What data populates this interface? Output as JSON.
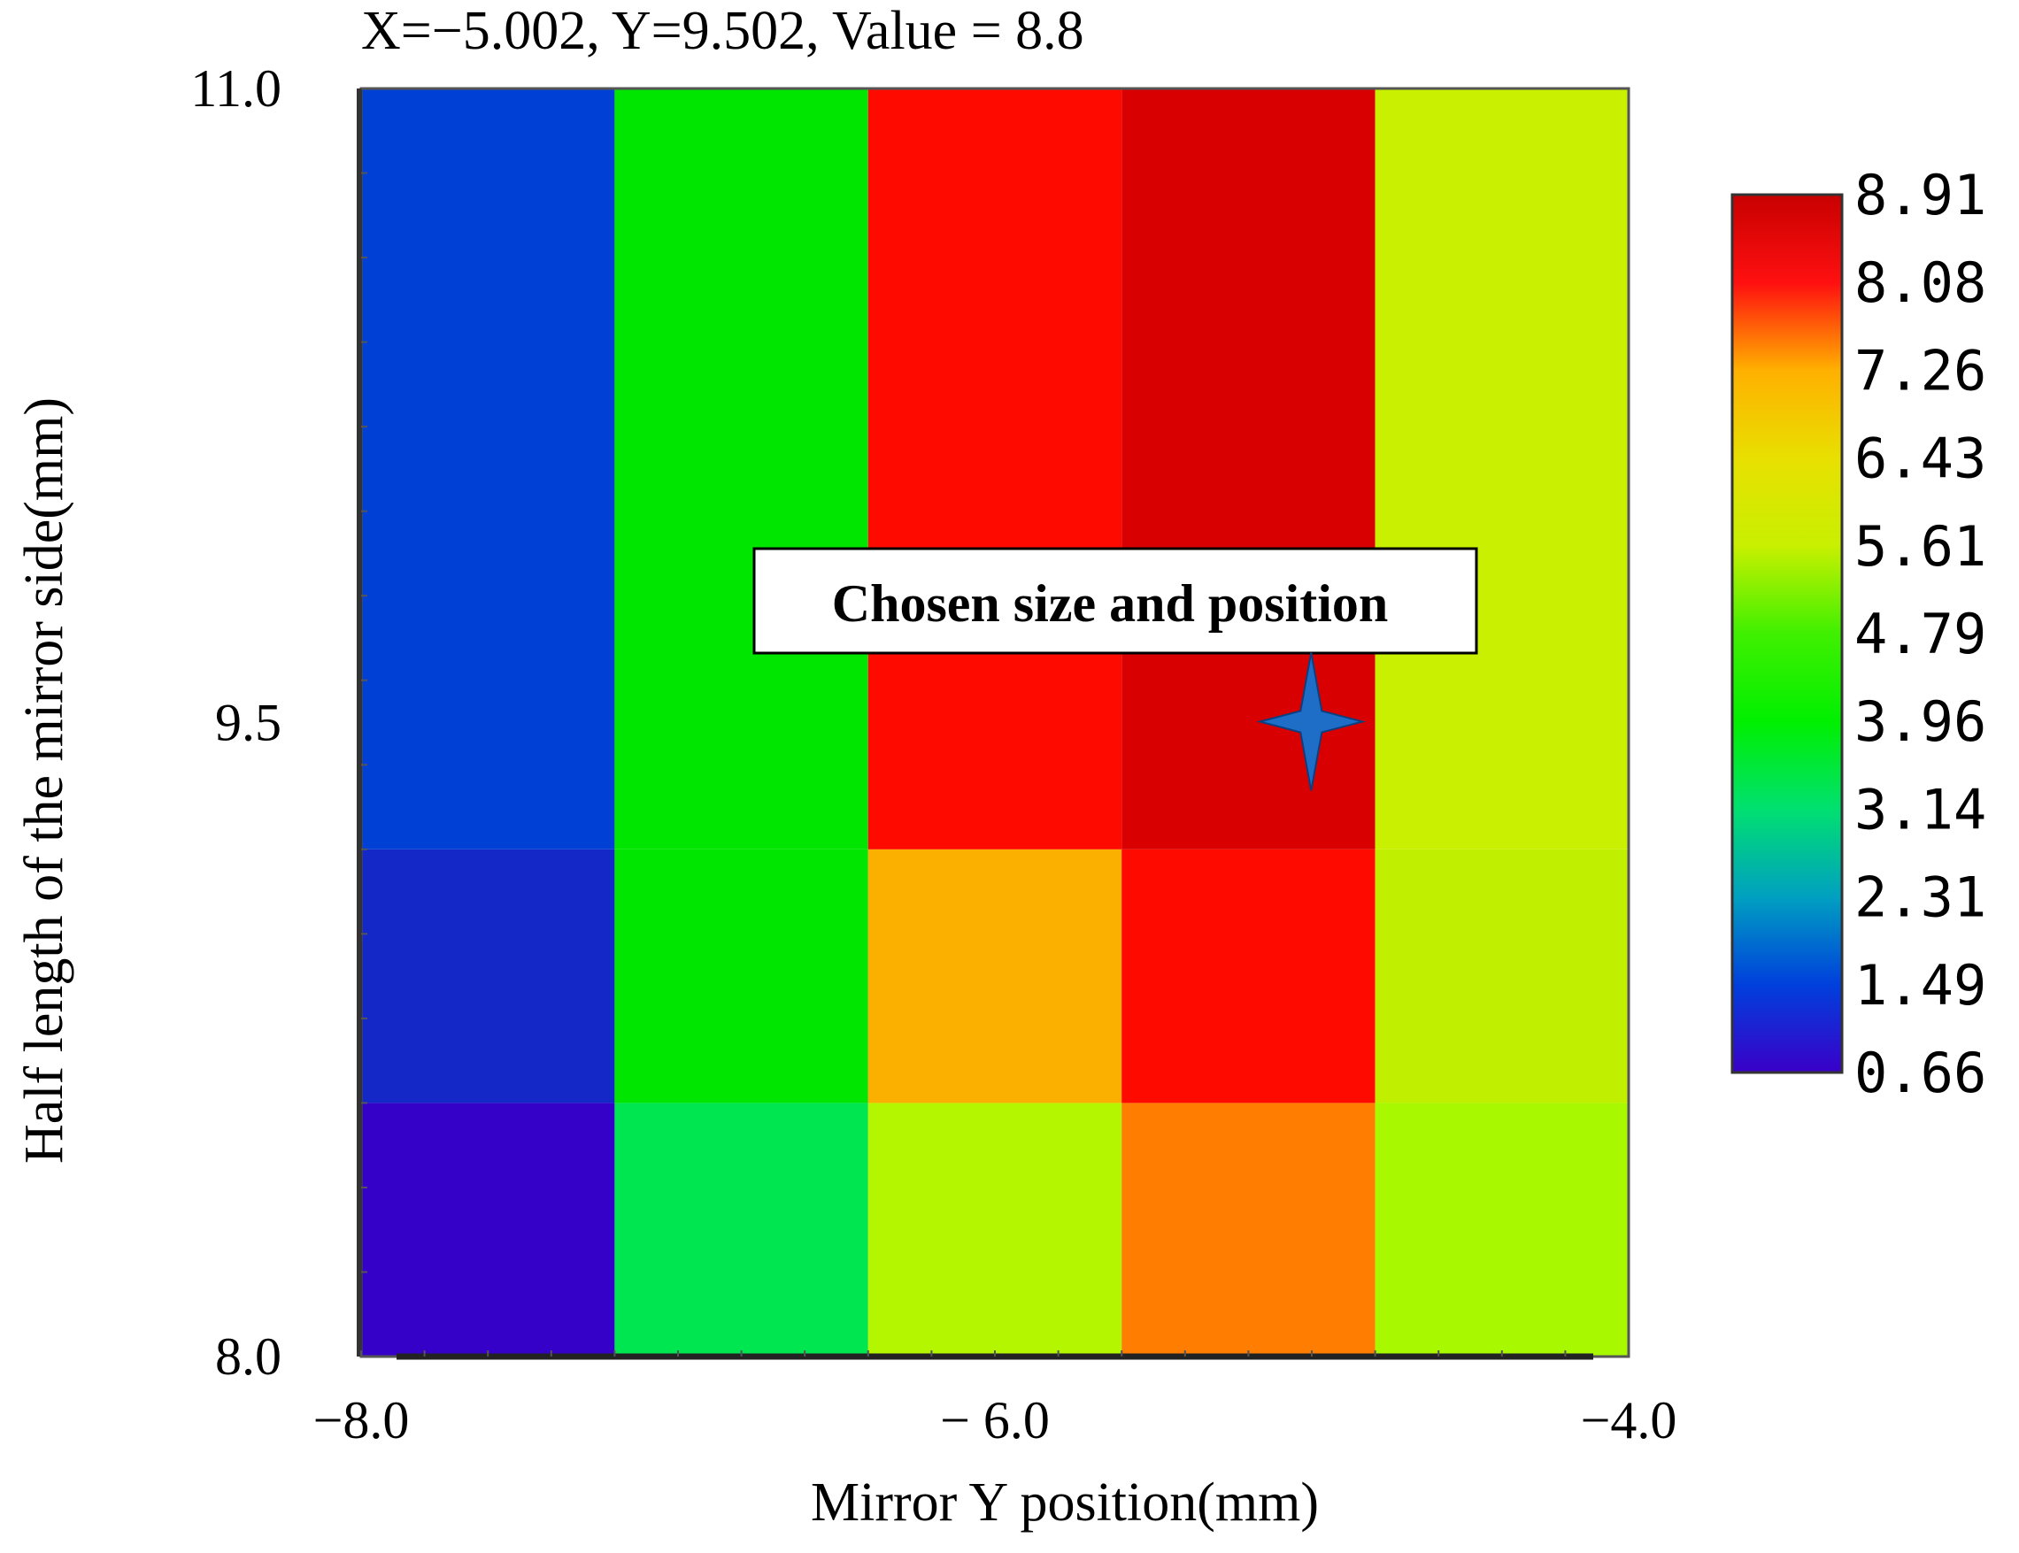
{
  "chart_data": {
    "type": "heatmap",
    "readout": "X=−5.002,  Y=9.502,  Value = 8.8",
    "xlabel": "Mirror Y position(mm)",
    "ylabel": "Half length of the mirror side(mm)",
    "xlim": [
      -8.0,
      -4.0
    ],
    "ylim": [
      8.0,
      11.0
    ],
    "x_ticks": [
      {
        "value": -8.0,
        "label": "−8.0"
      },
      {
        "value": -6.0,
        "label": "− 6.0"
      },
      {
        "value": -4.0,
        "label": "−4.0"
      }
    ],
    "y_ticks": [
      {
        "value": 11.0,
        "label": "11.0"
      },
      {
        "value": 9.5,
        "label": "9.5"
      },
      {
        "value": 8.0,
        "label": "8.0"
      }
    ],
    "x_edges": [
      -8.0,
      -7.2,
      -6.4,
      -5.6,
      -4.8,
      -4.0
    ],
    "y_edges": [
      8.0,
      8.6,
      9.2,
      11.0
    ],
    "cell_values": [
      [
        0.66,
        3.3,
        6.0,
        7.3,
        5.9
      ],
      [
        1.1,
        4.4,
        7.4,
        8.4,
        6.0
      ],
      [
        1.4,
        4.4,
        8.4,
        8.8,
        6.1
      ]
    ],
    "colorbar": {
      "labels": [
        "8.91",
        "8.08",
        "7.26",
        "6.43",
        "5.61",
        "4.79",
        "3.96",
        "3.14",
        "2.31",
        "1.49",
        "0.66"
      ],
      "min": 0.66,
      "max": 8.91,
      "stops": [
        {
          "v": 0.66,
          "color": "#3a00c8"
        },
        {
          "v": 1.49,
          "color": "#0040dc"
        },
        {
          "v": 2.31,
          "color": "#00a0c0"
        },
        {
          "v": 3.14,
          "color": "#00e070"
        },
        {
          "v": 3.96,
          "color": "#00f000"
        },
        {
          "v": 4.79,
          "color": "#40f000"
        },
        {
          "v": 5.61,
          "color": "#c8f000"
        },
        {
          "v": 6.43,
          "color": "#e8e000"
        },
        {
          "v": 7.26,
          "color": "#ffb000"
        },
        {
          "v": 8.08,
          "color": "#ff1010"
        },
        {
          "v": 8.91,
          "color": "#c80000"
        }
      ]
    },
    "cell_colors": [
      [
        "#3500c8",
        "#00e650",
        "#b4f500",
        "#ff7d00",
        "#a8f800"
      ],
      [
        "#1428c8",
        "#00e600",
        "#fbb000",
        "#ff0a00",
        "#c0f000"
      ],
      [
        "#0040d4",
        "#00e600",
        "#ff0a00",
        "#d80000",
        "#c8f000"
      ]
    ],
    "annotation": {
      "text": "Chosen size and position",
      "x": -5.002,
      "y": 9.502,
      "marker": "four-point-star",
      "marker_color": "#1e6ec8"
    }
  }
}
